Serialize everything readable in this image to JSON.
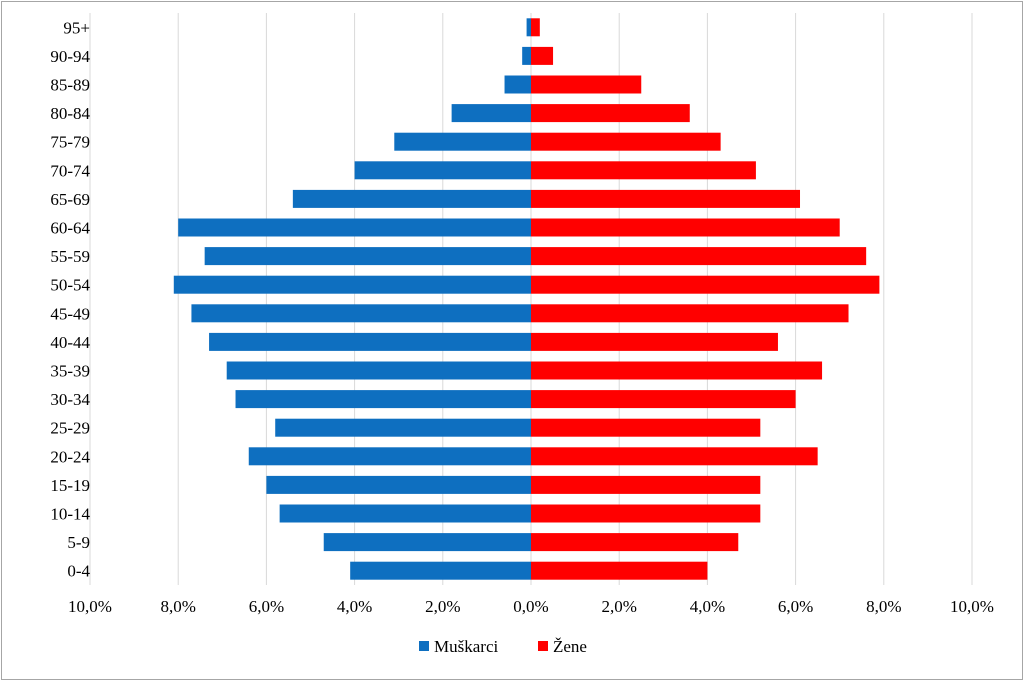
{
  "chart_data": {
    "type": "bar",
    "orientation": "horizontal",
    "title": "",
    "xlabel": "",
    "ylabel": "",
    "xlim": [
      -10,
      10
    ],
    "grid": true,
    "legend_position": "bottom",
    "categories": [
      "0-4",
      "5-9",
      "10-14",
      "15-19",
      "20-24",
      "25-29",
      "30-34",
      "35-39",
      "40-44",
      "45-49",
      "50-54",
      "55-59",
      "60-64",
      "65-69",
      "70-74",
      "75-79",
      "80-84",
      "85-89",
      "90-94",
      "95+"
    ],
    "x_tick_labels": [
      "10,0%",
      "8,0%",
      "6,0%",
      "4,0%",
      "2,0%",
      "0,0%",
      "2,0%",
      "4,0%",
      "6,0%",
      "8,0%",
      "10,0%"
    ],
    "series": [
      {
        "name": "Muškarci",
        "color": "#0e6fc0",
        "direction": "left",
        "values": [
          4.1,
          4.7,
          5.7,
          6.0,
          6.4,
          5.8,
          6.7,
          6.9,
          7.3,
          7.7,
          8.1,
          7.4,
          8.0,
          5.4,
          4.0,
          3.1,
          1.8,
          0.6,
          0.2,
          0.1
        ]
      },
      {
        "name": "Žene",
        "color": "#ff0000",
        "direction": "right",
        "values": [
          4.0,
          4.7,
          5.2,
          5.2,
          6.5,
          5.2,
          6.0,
          6.6,
          5.6,
          7.2,
          7.9,
          7.6,
          7.0,
          6.1,
          5.1,
          4.3,
          3.6,
          2.5,
          0.5,
          0.2
        ]
      }
    ]
  }
}
